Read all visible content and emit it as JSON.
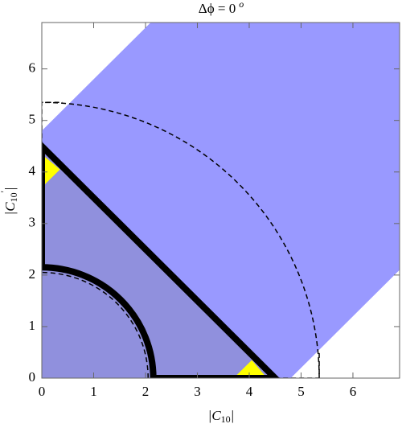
{
  "chart_data": {
    "type": "region",
    "title": "Δϕ = 0",
    "title_superscript": "o",
    "xlabel": {
      "main": "|C",
      "sub": "10",
      "end": "|"
    },
    "ylabel": {
      "main": "|C",
      "sub": "10",
      "sup": "'",
      "end": "|"
    },
    "xlim": [
      0,
      6.9
    ],
    "ylim": [
      0,
      6.9
    ],
    "xticks": [
      0,
      1,
      2,
      3,
      4,
      5,
      6
    ],
    "yticks": [
      0,
      1,
      2,
      3,
      4,
      5,
      6
    ],
    "regions": [
      {
        "color": "#9999ff",
        "x": [
          0,
          0,
          2.1,
          6.9,
          6.9,
          4.8
        ],
        "y": [
          0,
          4.8,
          6.9,
          6.9,
          2.1,
          0
        ]
      },
      {
        "color": "#9090dd",
        "x": [
          0,
          0,
          4.5
        ],
        "y": [
          0,
          4.5,
          0
        ]
      },
      {
        "color": "#ffff00",
        "x": [
          0.05,
          0.05,
          0.35
        ],
        "y": [
          4.3,
          3.75,
          4.05
        ]
      },
      {
        "color": "#ffff00",
        "x": [
          4.3,
          3.75,
          4.05
        ],
        "y": [
          0.05,
          0.05,
          0.35
        ]
      }
    ],
    "lines": [
      {
        "color": "#000000",
        "width": 8,
        "dashed": false,
        "x": [
          0,
          0,
          4.5,
          2.15
        ],
        "y": [
          2.15,
          4.5,
          0,
          0
        ]
      },
      {
        "color": "#000000",
        "width": 1.5,
        "dashed": true,
        "x": [
          0,
          0,
          0.4
        ],
        "y": [
          4.5,
          5.35,
          5.35
        ]
      },
      {
        "color": "#000000",
        "width": 1.5,
        "dashed": true,
        "x": [
          4.5,
          5.35,
          5.35
        ],
        "y": [
          0,
          0,
          0.5
        ]
      }
    ],
    "arcs": [
      {
        "color": "#000000",
        "width": 8,
        "dashed": false,
        "r": 2.15
      },
      {
        "color": "#000000",
        "width": 1.5,
        "dashed": true,
        "r": 2.05
      },
      {
        "color": "#000000",
        "width": 1.5,
        "dashed": true,
        "r": 5.35
      }
    ]
  }
}
